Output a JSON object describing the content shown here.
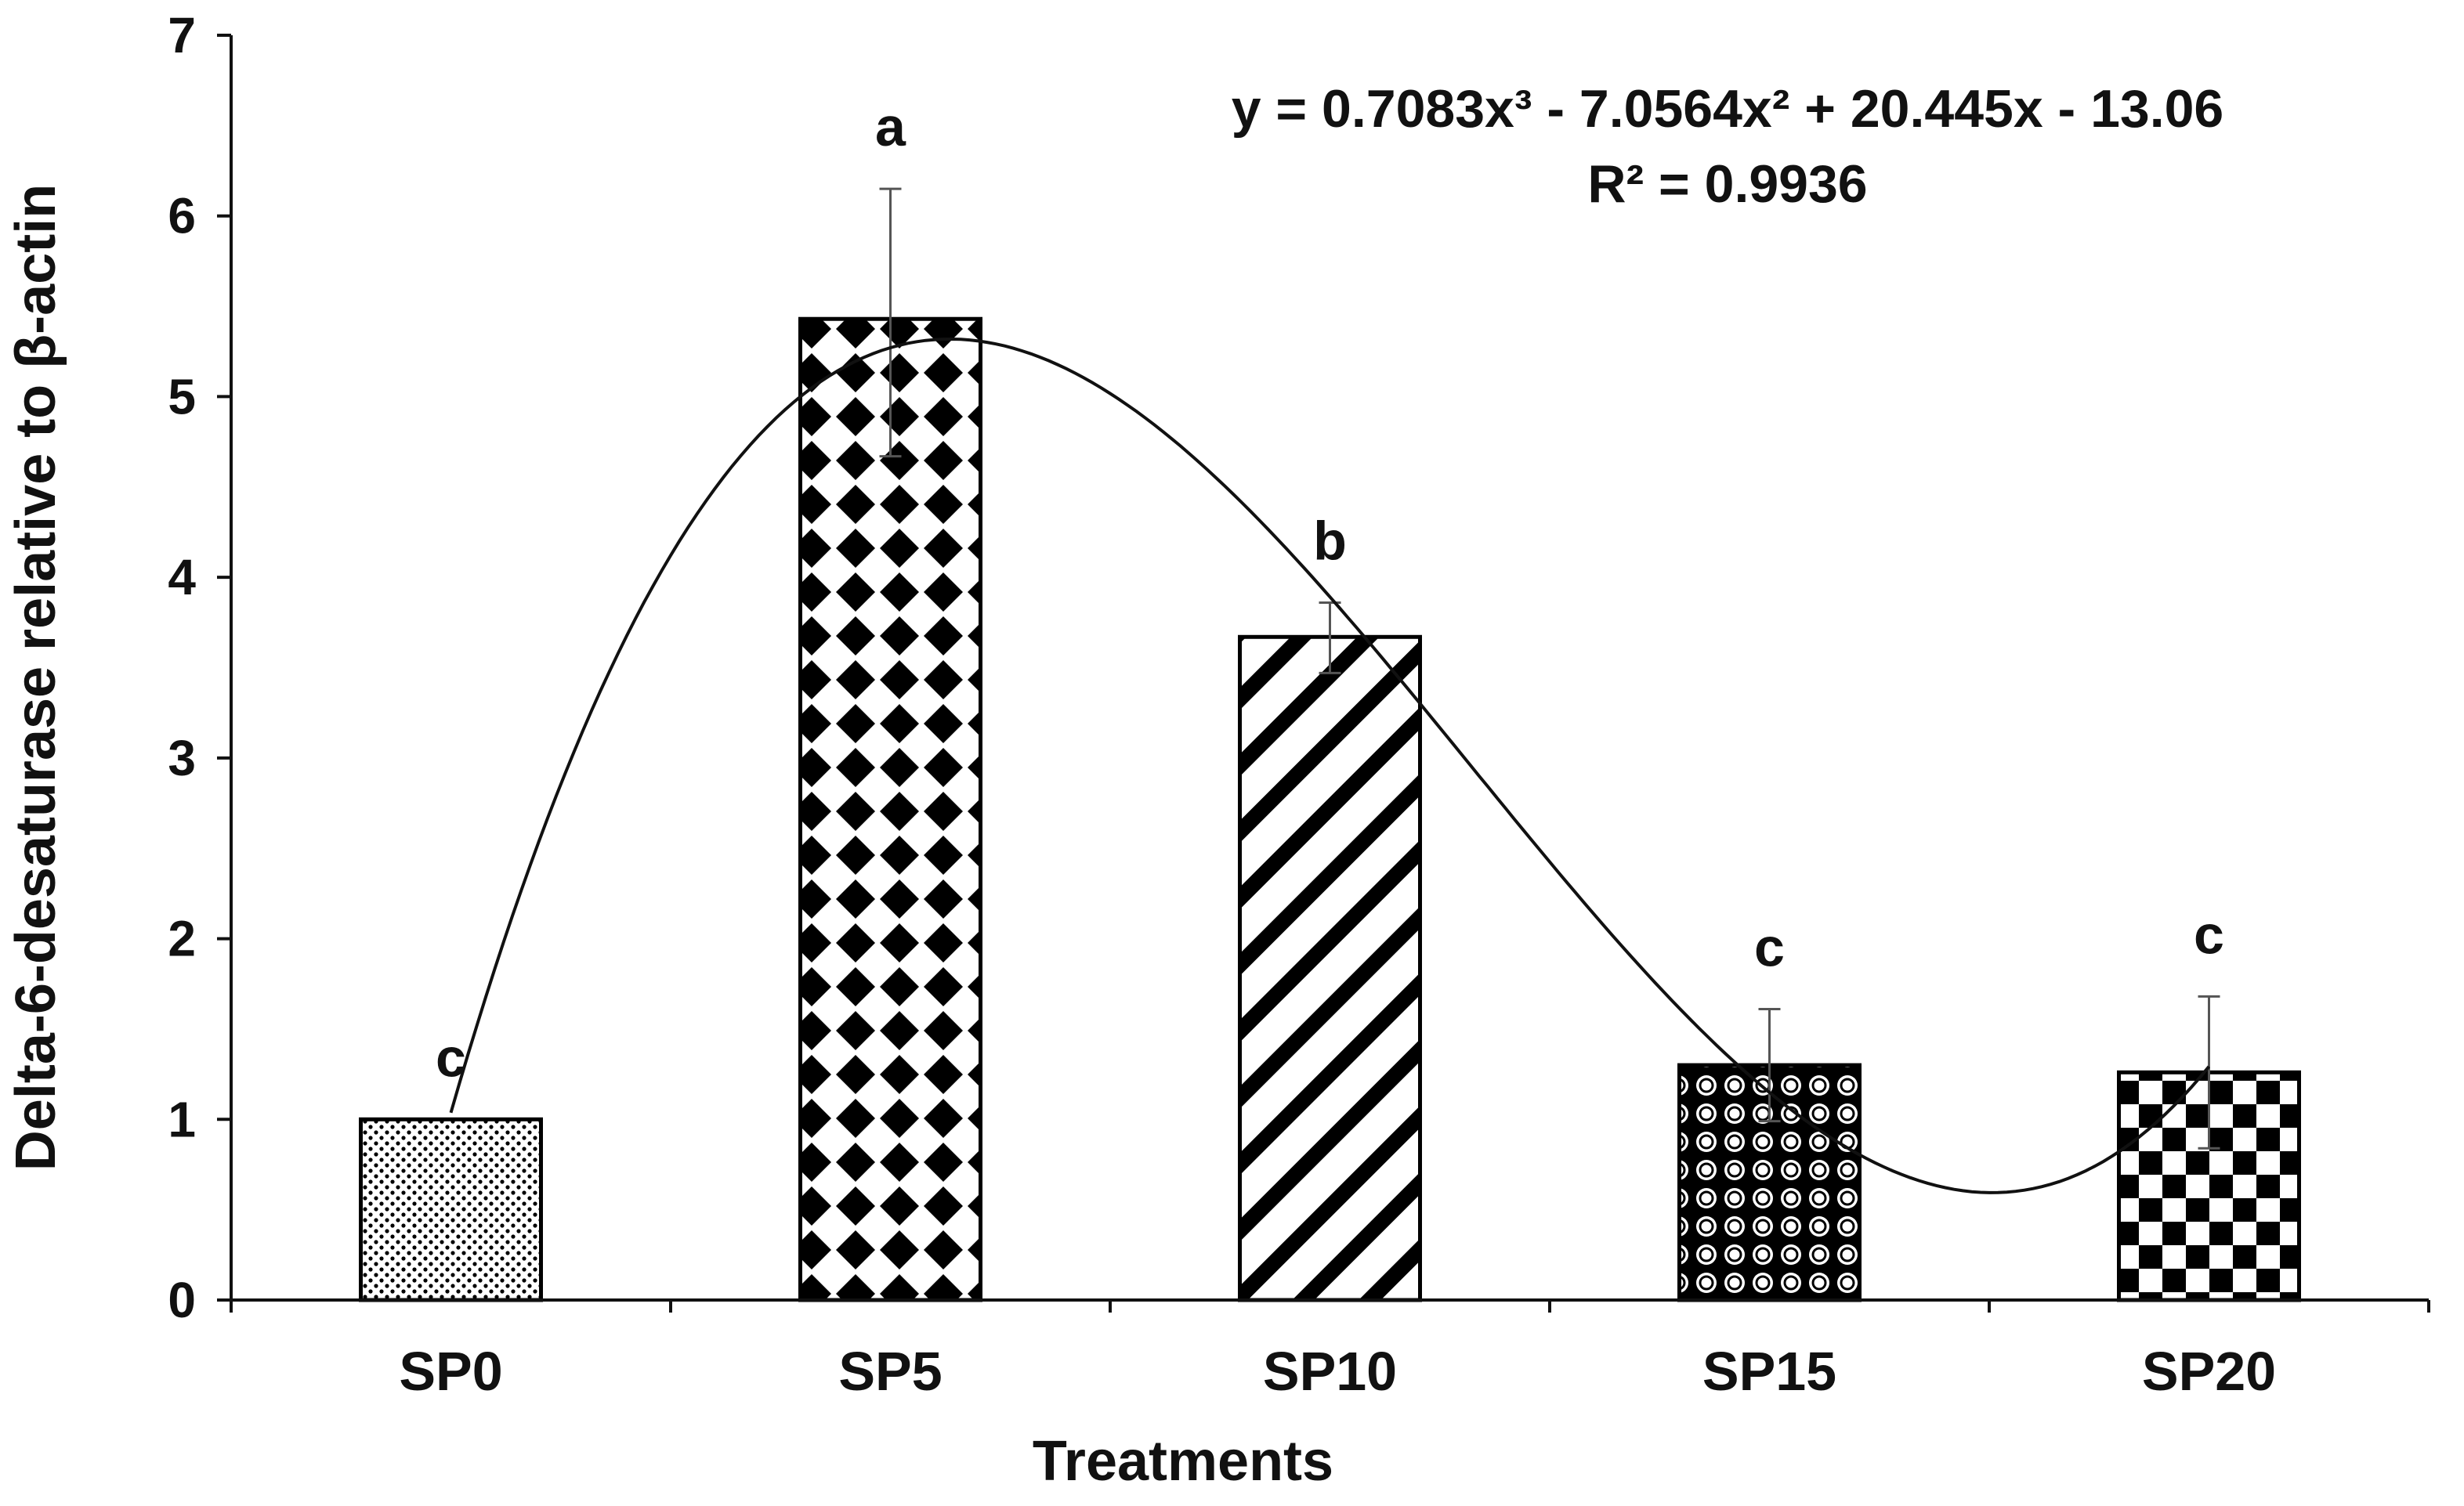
{
  "chart_data": {
    "type": "bar",
    "categories": [
      "SP0",
      "SP5",
      "SP10",
      "SP15",
      "SP20"
    ],
    "values": [
      1.0,
      5.43,
      3.67,
      1.3,
      1.26
    ],
    "error_upper": [
      1.0,
      6.15,
      3.86,
      1.61,
      1.68
    ],
    "error_lower": [
      1.0,
      4.67,
      3.47,
      0.99,
      0.84
    ],
    "significance": [
      "c",
      "a",
      "b",
      "c",
      "c"
    ],
    "patterns": [
      "dots",
      "diamonds",
      "diagonal-stripes",
      "circles",
      "checkerboard"
    ],
    "xlabel": "Treatments",
    "ylabel": "Delta-6-desaturase relative to β-actin",
    "ylim": [
      0,
      7
    ],
    "yticks": [
      0,
      1,
      2,
      3,
      4,
      5,
      6,
      7
    ],
    "grid": false,
    "legend": "none",
    "trendline": {
      "type": "polynomial-3",
      "coefficients": [
        0.7083,
        -7.0564,
        20.445,
        -13.06
      ],
      "equation": "y = 0.7083x³ - 7.0564x² + 20.445x - 13.06",
      "r_squared": "R² = 0.9936"
    },
    "colors": {
      "ink": "#000000",
      "text": "#111111",
      "bar_bg": "#ffffff",
      "error": "#555555"
    }
  }
}
